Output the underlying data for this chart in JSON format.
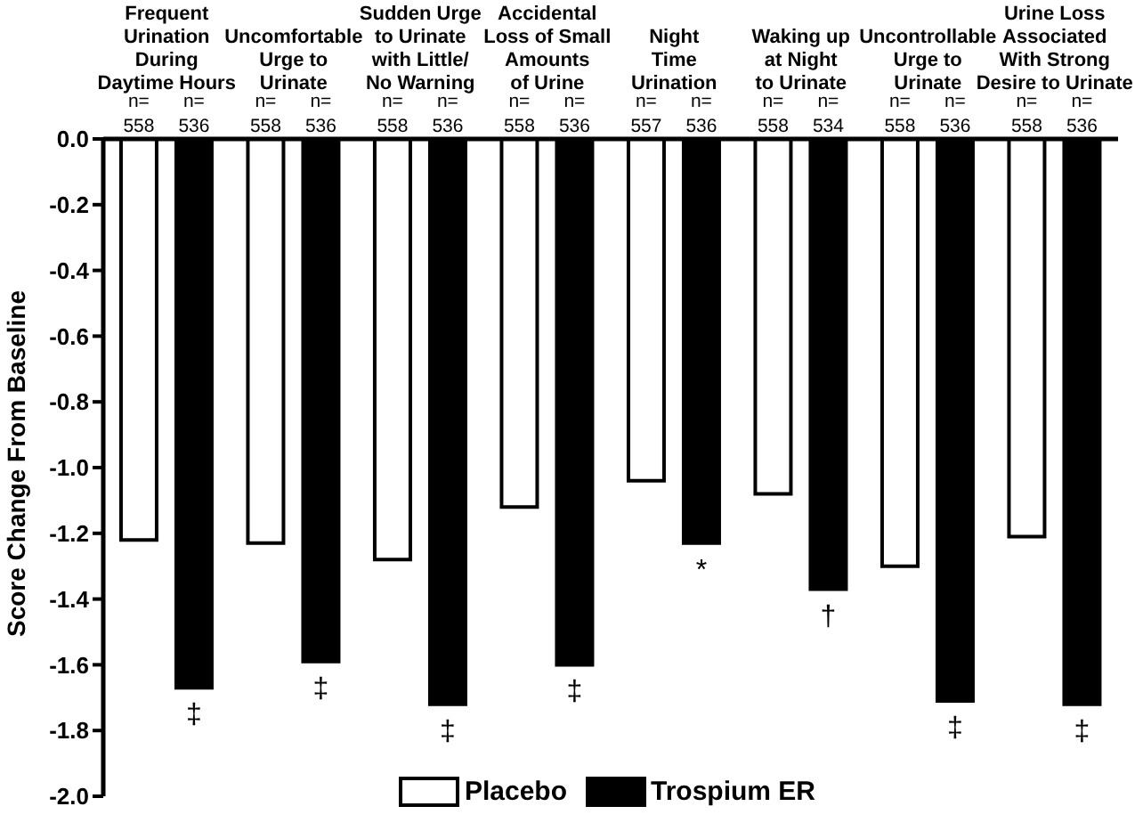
{
  "chart_data": {
    "type": "bar",
    "ylabel": "Score Change From Baseline",
    "categories": [
      "Frequent\nUrination\nDuring\nDaytime Hours",
      "Uncomfortable\nUrge to\nUrinate",
      "Sudden Urge\nto Urinate\nwith Little/\nNo Warning",
      "Accidental\nLoss of Small\nAmounts\nof Urine",
      "Night\nTime\nUrination",
      "Waking up\nat Night\nto Urinate",
      "Uncontrollable\nUrge to\nUrinate",
      "Urine Loss\nAssociated\nWith Strong\nDesire to Urinate"
    ],
    "series": [
      {
        "name": "Placebo",
        "color": "#ffffff",
        "values": [
          -1.22,
          -1.23,
          -1.28,
          -1.12,
          -1.04,
          -1.08,
          -1.3,
          -1.21
        ]
      },
      {
        "name": "Trospium ER",
        "color": "#000000",
        "values": [
          -1.67,
          -1.59,
          -1.72,
          -1.6,
          -1.23,
          -1.37,
          -1.71,
          -1.72
        ]
      }
    ],
    "ylim": [
      -2,
      0
    ],
    "yticks": [
      {
        "value": 0,
        "label": "0.0"
      },
      {
        "value": -0.2,
        "label": "-0.2"
      },
      {
        "value": -0.4,
        "label": "-0.4"
      },
      {
        "value": -0.6,
        "label": "-0.6"
      },
      {
        "value": -0.8,
        "label": "-0.8"
      },
      {
        "value": -1,
        "label": "-1.0"
      },
      {
        "value": -1.2,
        "label": "-1.2"
      },
      {
        "value": -1.4,
        "label": "-1.4"
      },
      {
        "value": -1.6,
        "label": "-1.6"
      },
      {
        "value": -1.8,
        "label": "-1.8"
      },
      {
        "value": -2,
        "label": "-2.0"
      }
    ],
    "legend": "bottom",
    "annotations": [
      "n=\n558",
      "n=\n536",
      "n=\n558",
      "n=\n536",
      "n=\n558",
      "n=\n536",
      "n=\n558",
      "n=\n536",
      "n=\n557",
      "n=\n536",
      "n=\n558",
      "n=\n534",
      "n=\n558",
      "n=\n536",
      "n=\n558",
      "n=\n536",
      "‡",
      "‡",
      "‡",
      "‡",
      "*",
      "†",
      "‡",
      "‡"
    ]
  }
}
